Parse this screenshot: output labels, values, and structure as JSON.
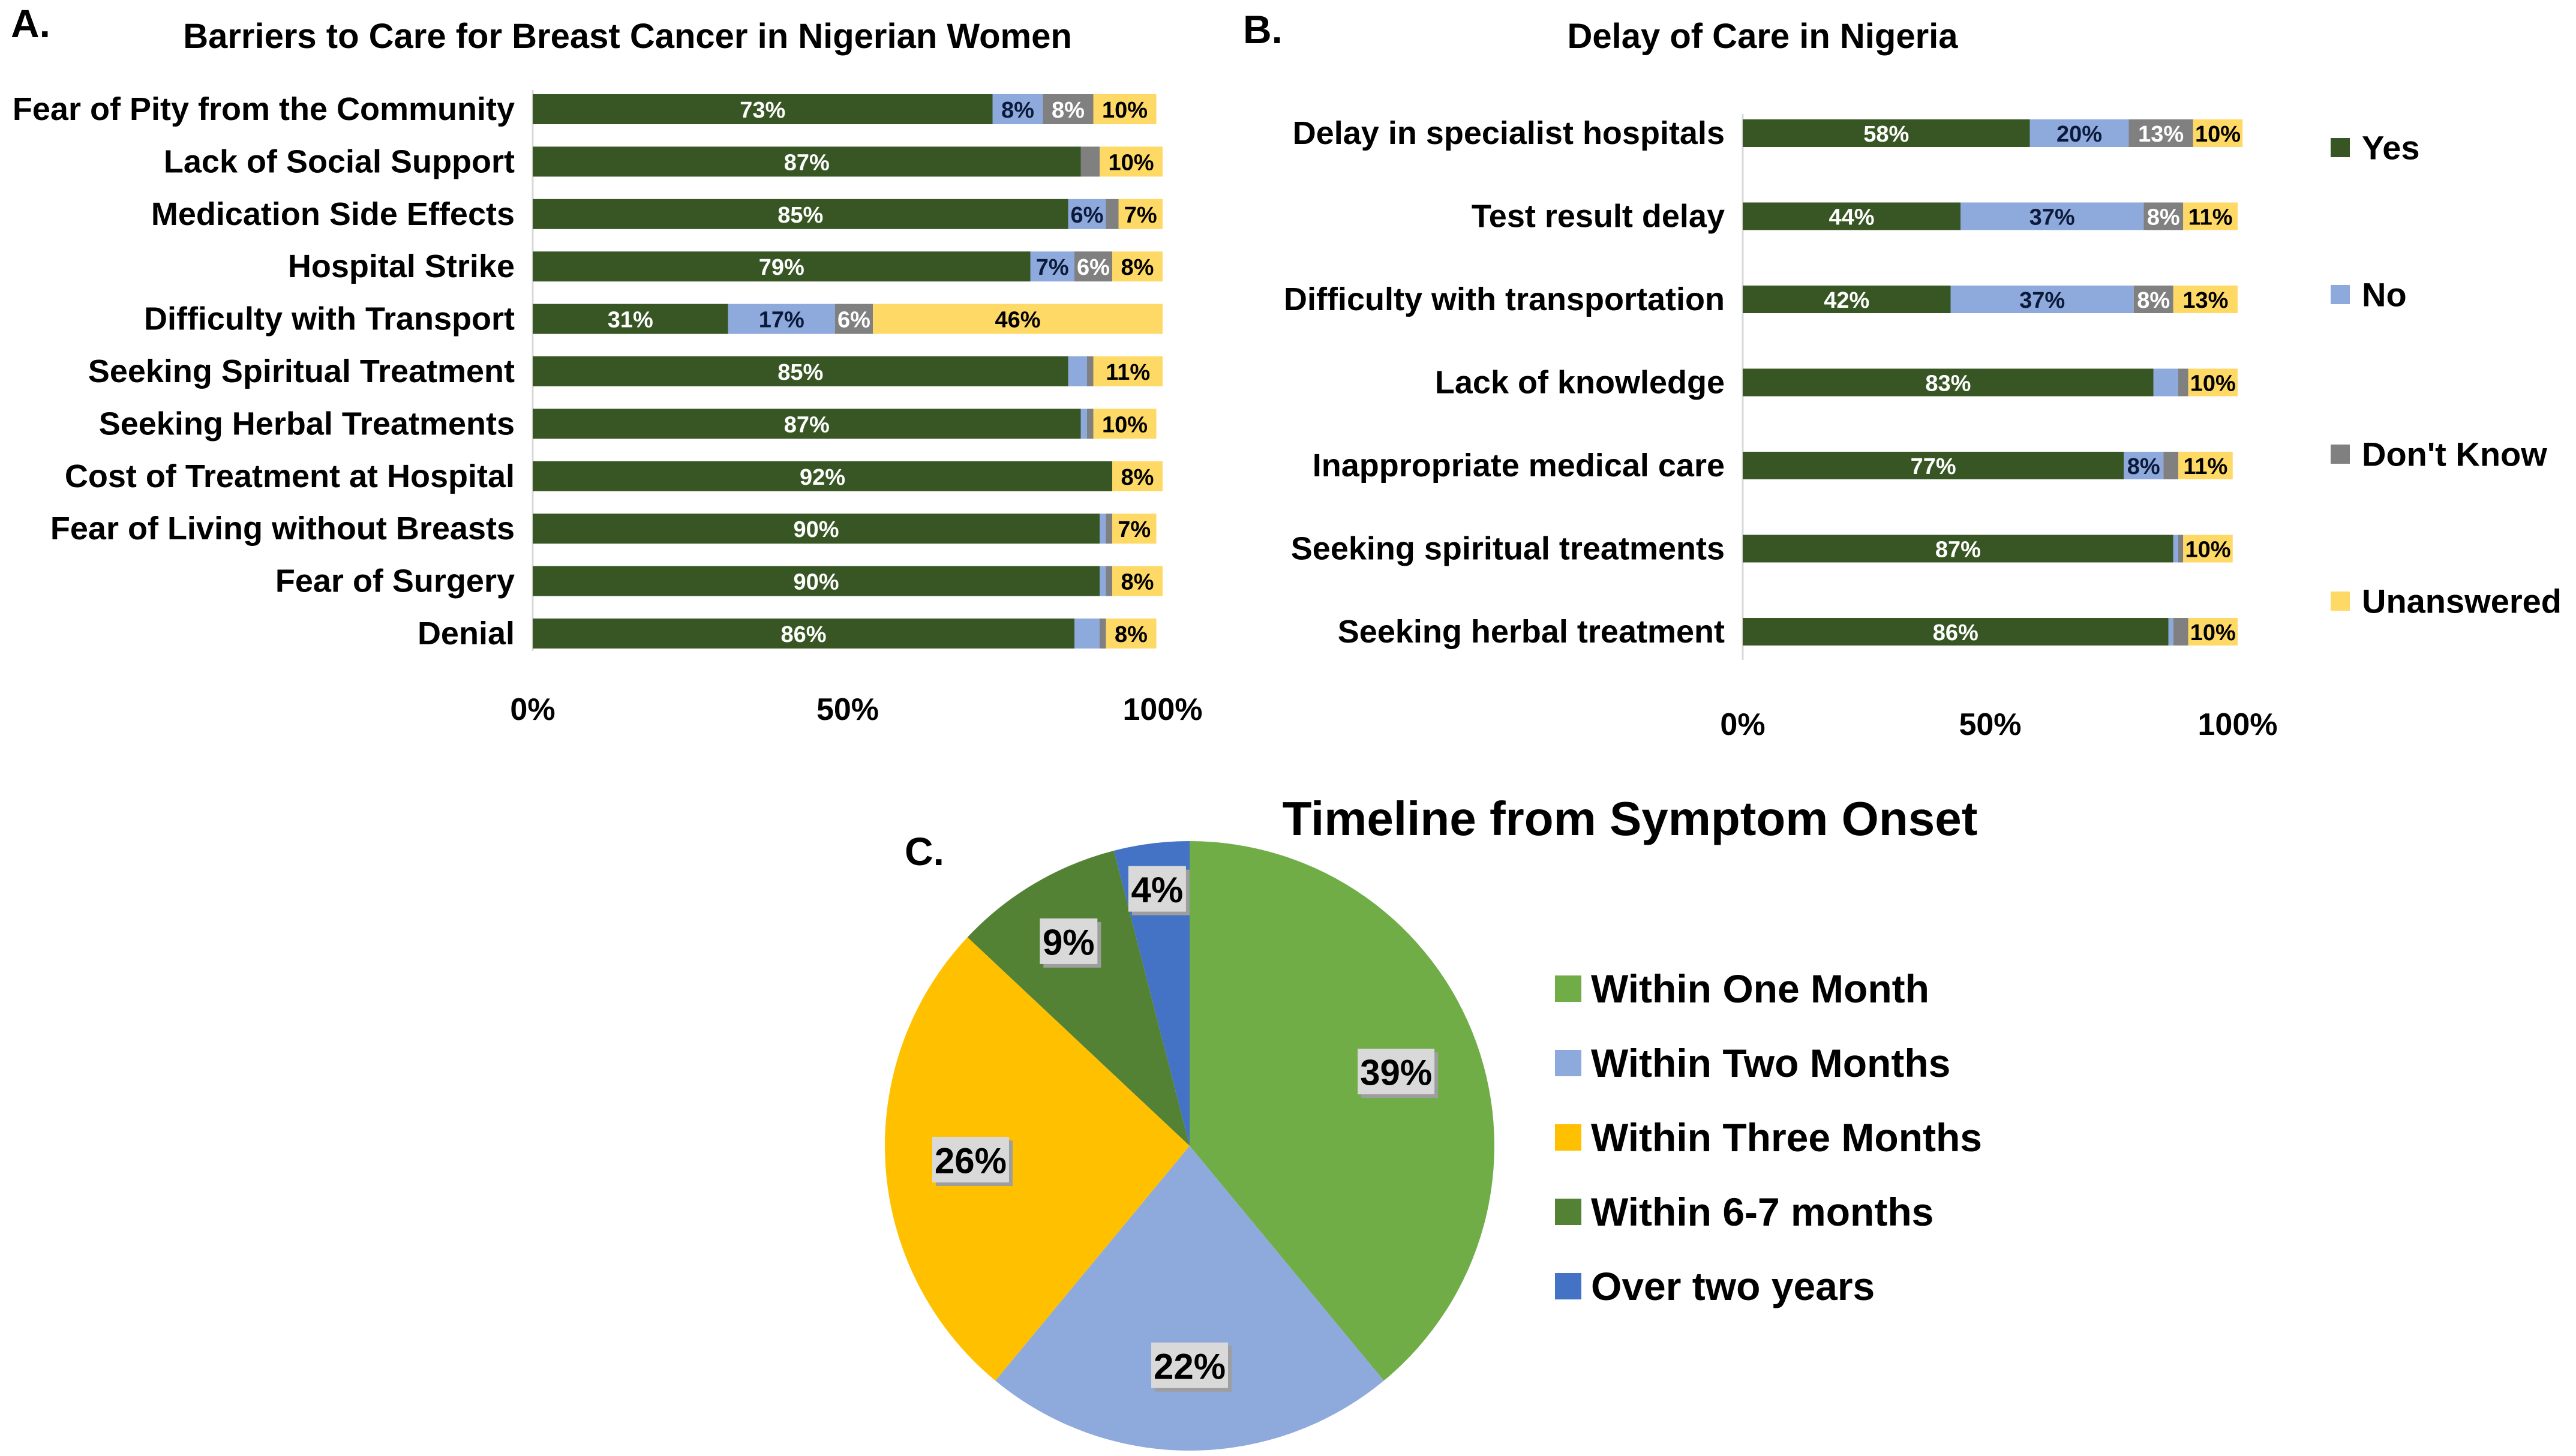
{
  "panels": {
    "a": "A.",
    "b": "B.",
    "c": "C."
  },
  "colors": {
    "yes": "#375623",
    "no": "#8EA9DB",
    "dont_know": "#808080",
    "unanswered": "#FFD966",
    "pie": [
      "#70AD47",
      "#8EA9DB",
      "#FFC000",
      "#548235",
      "#4472C4"
    ]
  },
  "chart_data": [
    {
      "type": "bar",
      "orientation": "horizontal",
      "stacked": true,
      "title": "Barriers to Care for Breast Cancer in Nigerian Women",
      "categories": [
        "Fear of Pity from the Community",
        "Lack of Social Support",
        "Medication Side Effects",
        "Hospital Strike",
        "Difficulty with Transport",
        "Seeking Spiritual Treatment",
        "Seeking Herbal Treatments",
        "Cost of Treatment at Hospital",
        "Fear of Living without Breasts",
        "Fear of Surgery",
        "Denial"
      ],
      "series": [
        {
          "name": "Yes",
          "values": [
            73,
            87,
            85,
            79,
            31,
            85,
            87,
            92,
            90,
            90,
            86
          ],
          "labels": [
            "73%",
            "87%",
            "85%",
            "79%",
            "31%",
            "85%",
            "87%",
            "92%",
            "90%",
            "90%",
            "86%"
          ]
        },
        {
          "name": "No",
          "values": [
            8,
            0,
            6,
            7,
            17,
            3,
            1,
            0,
            1,
            1,
            4
          ],
          "labels": [
            "8%",
            "",
            "6%",
            "7%",
            "17%",
            "",
            "",
            "",
            "",
            "",
            ""
          ]
        },
        {
          "name": "Don't Know",
          "values": [
            8,
            3,
            2,
            6,
            6,
            1,
            1,
            0,
            1,
            1,
            1
          ],
          "labels": [
            "8%",
            "",
            "",
            "6%",
            "6%",
            "",
            "",
            "",
            "",
            "",
            ""
          ]
        },
        {
          "name": "Unanswered",
          "values": [
            10,
            10,
            7,
            8,
            46,
            11,
            10,
            8,
            7,
            8,
            8
          ],
          "labels": [
            "10%",
            "10%",
            "7%",
            "8%",
            "46%",
            "11%",
            "10%",
            "8%",
            "7%",
            "8%",
            "8%"
          ]
        }
      ],
      "xticks": [
        "0%",
        "50%",
        "100%"
      ],
      "xlim": [
        0,
        100
      ]
    },
    {
      "type": "bar",
      "orientation": "horizontal",
      "stacked": true,
      "title": "Delay of Care in Nigeria",
      "categories": [
        "Delay in specialist hospitals",
        "Test result delay",
        "Difficulty with transportation",
        "Lack of knowledge",
        "Inappropriate medical care",
        "Seeking spiritual treatments",
        "Seeking herbal treatment"
      ],
      "series": [
        {
          "name": "Yes",
          "values": [
            58,
            44,
            42,
            83,
            77,
            87,
            86
          ],
          "labels": [
            "58%",
            "44%",
            "42%",
            "83%",
            "77%",
            "87%",
            "86%"
          ]
        },
        {
          "name": "No",
          "values": [
            20,
            37,
            37,
            5,
            8,
            1,
            1
          ],
          "labels": [
            "20%",
            "37%",
            "37%",
            "",
            "8%",
            "",
            ""
          ]
        },
        {
          "name": "Don't Know",
          "values": [
            13,
            8,
            8,
            2,
            3,
            1,
            3
          ],
          "labels": [
            "13%",
            "8%",
            "8%",
            "",
            "",
            "",
            ""
          ]
        },
        {
          "name": "Unanswered",
          "values": [
            10,
            11,
            13,
            10,
            11,
            10,
            10
          ],
          "labels": [
            "10%",
            "11%",
            "13%",
            "10%",
            "11%",
            "10%",
            "10%"
          ]
        }
      ],
      "legend": [
        "Yes",
        "No",
        "Don't Know",
        "Unanswered"
      ],
      "legend_position": "right",
      "xticks": [
        "0%",
        "50%",
        "100%"
      ],
      "xlim": [
        0,
        100
      ]
    },
    {
      "type": "pie",
      "title": "Timeline from Symptom Onset",
      "categories": [
        "Within One Month",
        "Within Two Months",
        "Within Three Months",
        "Within 6-7 months",
        "Over two years"
      ],
      "values": [
        39,
        22,
        26,
        9,
        4
      ],
      "labels": [
        "39%",
        "22%",
        "26%",
        "9%",
        "4%"
      ],
      "legend_position": "right"
    }
  ]
}
